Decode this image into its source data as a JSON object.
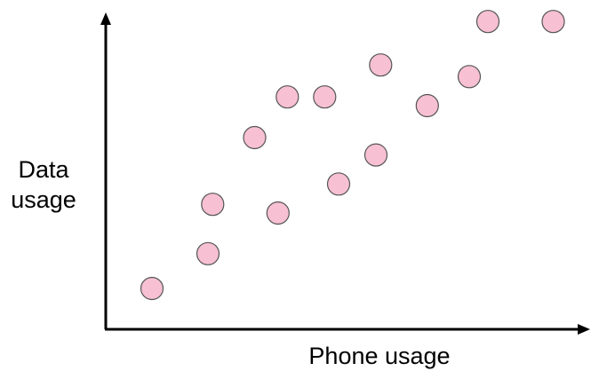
{
  "chart_data": {
    "type": "scatter",
    "title": "",
    "xlabel": "Phone usage",
    "ylabel": "Data usage",
    "xlim": [
      0,
      100
    ],
    "ylim": [
      0,
      100
    ],
    "grid": false,
    "legend": "none",
    "point_color": "#f7c0d3",
    "point_edge_color": "#555555",
    "axis_color": "#000000",
    "points": [
      {
        "x": 8,
        "y": 11
      },
      {
        "x": 20,
        "y": 23
      },
      {
        "x": 21,
        "y": 40
      },
      {
        "x": 30,
        "y": 63
      },
      {
        "x": 35,
        "y": 37
      },
      {
        "x": 37,
        "y": 77
      },
      {
        "x": 45,
        "y": 77
      },
      {
        "x": 48,
        "y": 47
      },
      {
        "x": 56,
        "y": 57
      },
      {
        "x": 57,
        "y": 88
      },
      {
        "x": 67,
        "y": 74
      },
      {
        "x": 76,
        "y": 84
      },
      {
        "x": 80,
        "y": 103
      },
      {
        "x": 94,
        "y": 103
      }
    ]
  }
}
